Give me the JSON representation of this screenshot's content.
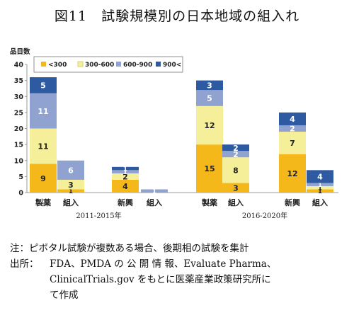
{
  "title": "図11　試験規模別の日本地域の組入れ",
  "chart_data": {
    "type": "bar",
    "stacked": true,
    "ylabel": "品目数",
    "ylim": [
      0,
      40
    ],
    "yticks": [
      0,
      5,
      10,
      15,
      20,
      25,
      30,
      35,
      40
    ],
    "grid": false,
    "legend_position": "top-left",
    "categories": [
      "製薬",
      "組入",
      "新興",
      "組入",
      "製薬",
      "組入",
      "新興",
      "組入"
    ],
    "groups": [
      {
        "label": "2011-2015年",
        "categories": [
          0,
          1,
          2,
          3
        ]
      },
      {
        "label": "2016-2020年",
        "categories": [
          4,
          5,
          6,
          7
        ]
      }
    ],
    "series": [
      {
        "name": "<300",
        "color": "#f4b81b",
        "values": [
          9,
          1,
          4,
          0,
          15,
          3,
          12,
          1
        ]
      },
      {
        "name": "300-600",
        "color": "#f5ef9a",
        "values": [
          11,
          3,
          2,
          0,
          12,
          8,
          7,
          1
        ]
      },
      {
        "name": "600-900",
        "color": "#8fa2d0",
        "values": [
          11,
          6,
          1,
          1,
          5,
          2,
          2,
          1
        ]
      },
      {
        "name": "900<",
        "color": "#2e5aa2",
        "values": [
          5,
          0,
          1,
          0,
          3,
          2,
          4,
          4
        ]
      }
    ]
  },
  "note": "注：ピボタル試験が複数ある場合、後期相の試験を集計",
  "source_label": "出所：",
  "source_lines": [
    "FDA、PMDA の 公 開 情 報、Evaluate Pharma、",
    "ClinicalTrials.gov をもとに医薬産業政策研究所に",
    "て作成"
  ]
}
